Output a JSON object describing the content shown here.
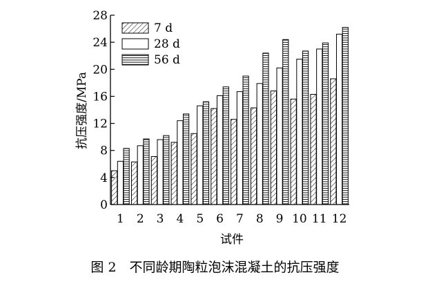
{
  "chart_data": {
    "type": "bar",
    "title": "",
    "xlabel": "试件",
    "ylabel": "抗压强度/MPa",
    "ylim": [
      0,
      28
    ],
    "yticks": [
      "0",
      "4",
      "8",
      "12",
      "16",
      "20",
      "24",
      "28"
    ],
    "categories": [
      "1",
      "2",
      "3",
      "4",
      "5",
      "6",
      "7",
      "8",
      "9",
      "10",
      "11",
      "12"
    ],
    "legend_position": "top-left",
    "grid": false,
    "series": [
      {
        "name": "7 d",
        "pattern": "diagonal-hatch",
        "values": [
          5.0,
          6.3,
          7.1,
          9.2,
          10.5,
          14.2,
          12.6,
          14.3,
          16.8,
          15.6,
          16.3,
          18.6
        ]
      },
      {
        "name": "28 d",
        "pattern": "blank",
        "values": [
          6.4,
          8.7,
          9.6,
          12.4,
          14.6,
          16.1,
          16.7,
          17.9,
          20.2,
          21.5,
          23.0,
          25.2
        ]
      },
      {
        "name": "56 d",
        "pattern": "horizontal-lines",
        "values": [
          8.3,
          9.7,
          10.2,
          13.4,
          15.2,
          17.4,
          19.0,
          22.4,
          24.4,
          22.7,
          23.9,
          26.2
        ]
      }
    ]
  },
  "caption": "图 2　不同龄期陶粒泡沫混凝土的抗压强度"
}
